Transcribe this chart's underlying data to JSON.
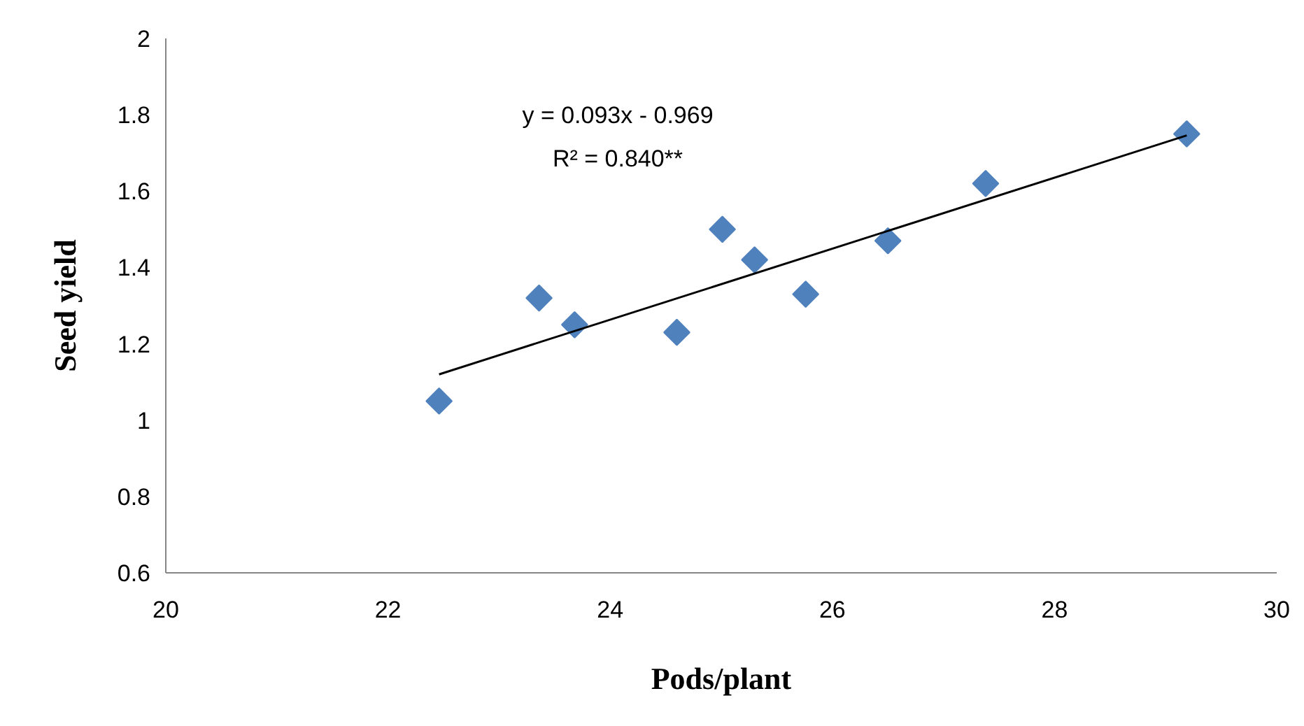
{
  "chart_data": {
    "type": "scatter",
    "xlabel": "Pods/plant",
    "ylabel": "Seed yield",
    "xlim": [
      20,
      30
    ],
    "xticks": [
      20,
      22,
      24,
      26,
      28,
      30
    ],
    "ylim": [
      0.6,
      2
    ],
    "yticks": [
      0.6,
      0.8,
      1,
      1.2,
      1.4,
      1.6,
      1.8,
      2
    ],
    "grid": false,
    "marker": "diamond",
    "series": [
      {
        "color": "#4f81bd",
        "x": [
          22.46,
          23.36,
          23.68,
          24.6,
          25.01,
          25.3,
          25.76,
          26.5,
          27.38,
          29.19
        ],
        "values": [
          1.05,
          1.32,
          1.25,
          1.23,
          1.5,
          1.42,
          1.33,
          1.47,
          1.62,
          1.75
        ]
      },
      {
        "type": "line",
        "marker": "none",
        "color": "#000000",
        "x": [
          22.46,
          29.19
        ],
        "values": [
          1.12,
          1.746
        ]
      }
    ],
    "annotations": [
      "y = 0.093x - 0.969",
      "R² = 0.840**"
    ]
  }
}
